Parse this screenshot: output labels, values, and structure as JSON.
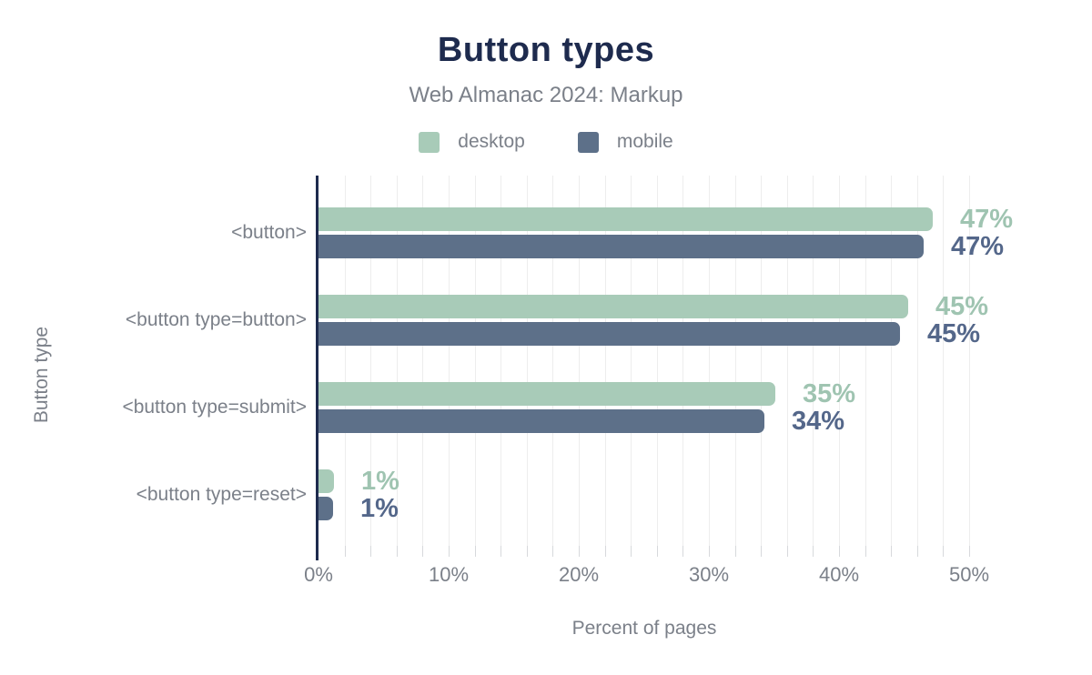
{
  "header": {
    "title": "Button types",
    "subtitle": "Web Almanac 2024: Markup"
  },
  "legend": {
    "items": [
      {
        "label": "desktop",
        "color": "#a8cbb8"
      },
      {
        "label": "mobile",
        "color": "#5d7089"
      }
    ]
  },
  "colors": {
    "title": "#1e2b4e",
    "axis": "#1e2b4e",
    "text_gray": "#7b8089",
    "grid": "#ededed",
    "tick": "#d7d9dc",
    "desktop": "#a8cbb8",
    "mobile": "#5d7089",
    "desktop_label": "#9fc4b1",
    "mobile_label": "#54678a"
  },
  "chart_data": {
    "type": "bar",
    "orientation": "horizontal",
    "title": "Button types",
    "subtitle": "Web Almanac 2024: Markup",
    "categories": [
      "<button>",
      "<button type=button>",
      "<button type=submit>",
      "<button type=reset>"
    ],
    "series": [
      {
        "name": "desktop",
        "values": [
          47,
          45,
          35,
          1
        ],
        "labels": [
          "47%",
          "45%",
          "35%",
          "1%"
        ],
        "bar_pct": [
          47.2,
          45.3,
          35.1,
          1.2
        ]
      },
      {
        "name": "mobile",
        "values": [
          47,
          45,
          34,
          1
        ],
        "labels": [
          "47%",
          "45%",
          "34%",
          "1%"
        ],
        "bar_pct": [
          46.5,
          44.7,
          34.3,
          1.1
        ]
      }
    ],
    "xlabel": "Percent of pages",
    "ylabel": "Button type",
    "x_ticks": [
      "0%",
      "10%",
      "20%",
      "30%",
      "40%",
      "50%"
    ],
    "xlim": [
      0,
      50
    ],
    "minor_grid_step_pct": 2,
    "grid": "vertical-minor",
    "legend_position": "top"
  }
}
